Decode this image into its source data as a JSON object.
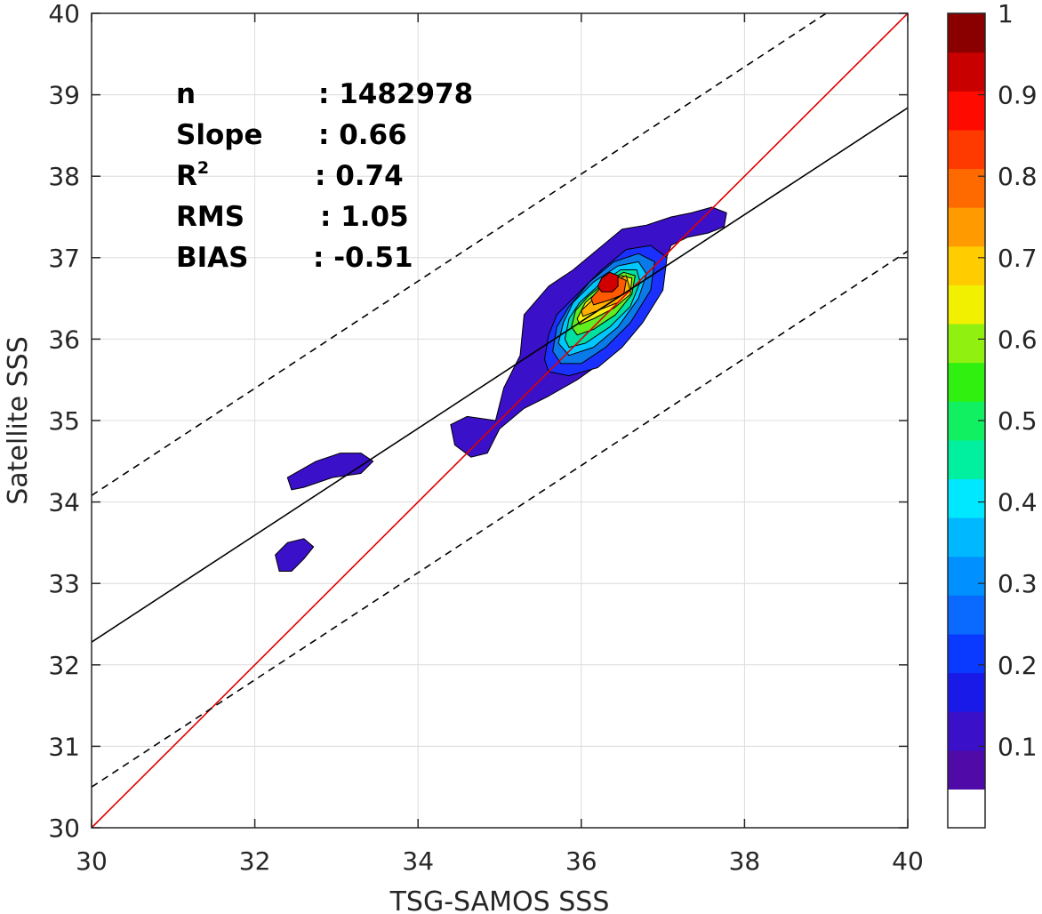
{
  "chart_data": {
    "type": "contour",
    "xlabel": "TSG-SAMOS SSS",
    "ylabel": "Satellite SSS",
    "xlim": [
      30,
      40
    ],
    "ylim": [
      30,
      40
    ],
    "xticks": [
      "30",
      "32",
      "34",
      "36",
      "38",
      "40"
    ],
    "yticks": [
      "30",
      "31",
      "32",
      "33",
      "34",
      "35",
      "36",
      "37",
      "38",
      "39",
      "40"
    ],
    "grid": true,
    "stats": [
      {
        "key": "n",
        "sup": "",
        "value": ": 1482978"
      },
      {
        "key": "Slope",
        "sup": "",
        "value": ": 0.66"
      },
      {
        "key": "R",
        "sup": "2",
        "value": ": 0.74"
      },
      {
        "key": "RMS",
        "sup": "",
        "value": ": 1.05"
      },
      {
        "key": "BIAS",
        "sup": "",
        "value": ": -0.51"
      }
    ],
    "lines": [
      {
        "role": "one-to-one",
        "color": "#e00000",
        "style": "solid",
        "points": [
          [
            30,
            30
          ],
          [
            40,
            40
          ]
        ]
      },
      {
        "role": "regression-fit",
        "color": "#000000",
        "style": "solid",
        "points": [
          [
            30,
            32.28
          ],
          [
            40,
            38.84
          ]
        ]
      },
      {
        "role": "upper-bound",
        "color": "#000000",
        "style": "dashed",
        "points": [
          [
            30,
            34.08
          ],
          [
            39,
            40
          ]
        ]
      },
      {
        "role": "lower-bound",
        "color": "#000000",
        "style": "dashed",
        "points": [
          [
            30,
            30.5
          ],
          [
            40,
            37.08
          ]
        ]
      }
    ],
    "density_regions": [
      {
        "level": 0.05,
        "color": "#3a10c8",
        "points": [
          [
            34.95,
            35.0
          ],
          [
            35.05,
            35.4
          ],
          [
            35.25,
            35.8
          ],
          [
            35.3,
            36.3
          ],
          [
            35.6,
            36.65
          ],
          [
            35.9,
            36.85
          ],
          [
            36.2,
            37.1
          ],
          [
            36.5,
            37.35
          ],
          [
            36.8,
            37.4
          ],
          [
            37.1,
            37.5
          ],
          [
            37.35,
            37.55
          ],
          [
            37.6,
            37.62
          ],
          [
            37.78,
            37.55
          ],
          [
            37.75,
            37.38
          ],
          [
            37.55,
            37.3
          ],
          [
            37.3,
            37.25
          ],
          [
            37.1,
            37.15
          ],
          [
            36.95,
            36.75
          ],
          [
            36.75,
            36.3
          ],
          [
            36.5,
            35.95
          ],
          [
            36.3,
            35.75
          ],
          [
            35.95,
            35.5
          ],
          [
            35.6,
            35.3
          ],
          [
            35.3,
            35.15
          ],
          [
            35.0,
            34.9
          ],
          [
            34.85,
            34.6
          ],
          [
            34.65,
            34.55
          ],
          [
            34.45,
            34.7
          ],
          [
            34.4,
            34.95
          ],
          [
            34.6,
            35.05
          ],
          [
            34.95,
            35.0
          ]
        ]
      },
      {
        "level": 0.05,
        "color": "#3a10c8",
        "points": [
          [
            32.4,
            34.3
          ],
          [
            32.75,
            34.5
          ],
          [
            33.05,
            34.6
          ],
          [
            33.3,
            34.6
          ],
          [
            33.45,
            34.5
          ],
          [
            33.3,
            34.35
          ],
          [
            32.95,
            34.3
          ],
          [
            32.6,
            34.18
          ],
          [
            32.45,
            34.15
          ],
          [
            32.4,
            34.3
          ]
        ]
      },
      {
        "level": 0.05,
        "color": "#3a10c8",
        "points": [
          [
            32.25,
            33.35
          ],
          [
            32.4,
            33.5
          ],
          [
            32.6,
            33.55
          ],
          [
            32.72,
            33.45
          ],
          [
            32.6,
            33.3
          ],
          [
            32.45,
            33.15
          ],
          [
            32.3,
            33.15
          ],
          [
            32.25,
            33.35
          ]
        ]
      },
      {
        "level": 0.15,
        "color": "#1a30ff",
        "points": [
          [
            35.55,
            35.75
          ],
          [
            35.6,
            36.05
          ],
          [
            35.7,
            36.3
          ],
          [
            35.95,
            36.55
          ],
          [
            36.25,
            36.85
          ],
          [
            36.55,
            37.1
          ],
          [
            36.85,
            37.15
          ],
          [
            37.05,
            37.0
          ],
          [
            37.0,
            36.6
          ],
          [
            36.75,
            36.2
          ],
          [
            36.5,
            35.9
          ],
          [
            36.2,
            35.65
          ],
          [
            35.85,
            35.55
          ],
          [
            35.6,
            35.6
          ],
          [
            35.55,
            35.75
          ]
        ]
      },
      {
        "level": 0.25,
        "color": "#0a7ae8",
        "points": [
          [
            35.65,
            35.85
          ],
          [
            35.7,
            36.15
          ],
          [
            35.85,
            36.4
          ],
          [
            36.1,
            36.7
          ],
          [
            36.4,
            36.95
          ],
          [
            36.7,
            37.05
          ],
          [
            36.9,
            36.95
          ],
          [
            36.85,
            36.6
          ],
          [
            36.6,
            36.2
          ],
          [
            36.3,
            35.9
          ],
          [
            36.0,
            35.7
          ],
          [
            35.75,
            35.7
          ],
          [
            35.65,
            35.85
          ]
        ]
      },
      {
        "level": 0.35,
        "color": "#00c8ff",
        "points": [
          [
            35.72,
            35.95
          ],
          [
            35.78,
            36.2
          ],
          [
            35.9,
            36.45
          ],
          [
            36.15,
            36.7
          ],
          [
            36.45,
            36.9
          ],
          [
            36.7,
            36.95
          ],
          [
            36.8,
            36.8
          ],
          [
            36.7,
            36.5
          ],
          [
            36.45,
            36.15
          ],
          [
            36.15,
            35.9
          ],
          [
            35.85,
            35.8
          ],
          [
            35.72,
            35.95
          ]
        ]
      },
      {
        "level": 0.45,
        "color": "#00e0a0",
        "points": [
          [
            35.8,
            36.0
          ],
          [
            35.85,
            36.25
          ],
          [
            35.98,
            36.45
          ],
          [
            36.2,
            36.65
          ],
          [
            36.48,
            36.85
          ],
          [
            36.68,
            36.85
          ],
          [
            36.72,
            36.7
          ],
          [
            36.6,
            36.4
          ],
          [
            36.35,
            36.15
          ],
          [
            36.05,
            35.95
          ],
          [
            35.85,
            35.9
          ],
          [
            35.8,
            36.0
          ]
        ]
      },
      {
        "level": 0.55,
        "color": "#60ee20",
        "points": [
          [
            35.88,
            36.15
          ],
          [
            35.93,
            36.35
          ],
          [
            36.08,
            36.52
          ],
          [
            36.3,
            36.7
          ],
          [
            36.52,
            36.82
          ],
          [
            36.66,
            36.78
          ],
          [
            36.62,
            36.55
          ],
          [
            36.42,
            36.3
          ],
          [
            36.15,
            36.12
          ],
          [
            35.95,
            36.05
          ],
          [
            35.88,
            36.15
          ]
        ]
      },
      {
        "level": 0.65,
        "color": "#f5ee10",
        "points": [
          [
            35.95,
            36.25
          ],
          [
            36.05,
            36.45
          ],
          [
            36.25,
            36.62
          ],
          [
            36.48,
            36.78
          ],
          [
            36.62,
            36.75
          ],
          [
            36.6,
            36.55
          ],
          [
            36.4,
            36.38
          ],
          [
            36.15,
            36.25
          ],
          [
            35.98,
            36.18
          ],
          [
            35.95,
            36.25
          ]
        ]
      },
      {
        "level": 0.75,
        "color": "#ffb000",
        "points": [
          [
            36.0,
            36.35
          ],
          [
            36.18,
            36.52
          ],
          [
            36.38,
            36.7
          ],
          [
            36.55,
            36.78
          ],
          [
            36.6,
            36.6
          ],
          [
            36.45,
            36.45
          ],
          [
            36.2,
            36.35
          ],
          [
            36.02,
            36.28
          ],
          [
            36.0,
            36.35
          ]
        ]
      },
      {
        "level": 0.85,
        "color": "#ff5a00",
        "points": [
          [
            36.12,
            36.5
          ],
          [
            36.25,
            36.65
          ],
          [
            36.42,
            36.78
          ],
          [
            36.55,
            36.72
          ],
          [
            36.52,
            36.55
          ],
          [
            36.35,
            36.48
          ],
          [
            36.15,
            36.42
          ],
          [
            36.12,
            36.5
          ]
        ]
      },
      {
        "level": 0.95,
        "color": "#d10000",
        "points": [
          [
            36.2,
            36.65
          ],
          [
            36.25,
            36.75
          ],
          [
            36.35,
            36.82
          ],
          [
            36.45,
            36.78
          ],
          [
            36.45,
            36.65
          ],
          [
            36.38,
            36.58
          ],
          [
            36.25,
            36.58
          ],
          [
            36.2,
            36.65
          ]
        ]
      }
    ],
    "colorbar": {
      "ticks": [
        "0.1",
        "0.2",
        "0.3",
        "0.4",
        "0.5",
        "0.6",
        "0.7",
        "0.8",
        "0.9",
        "1"
      ],
      "bands": [
        "#ffffff",
        "#4f0aa8",
        "#3a10c8",
        "#1a1ae8",
        "#0a3aff",
        "#0a6aff",
        "#0090ff",
        "#00b8ff",
        "#00e8ff",
        "#00f0a0",
        "#10f060",
        "#30f010",
        "#90f010",
        "#f0f000",
        "#ffcc00",
        "#ff9a00",
        "#ff6a00",
        "#ff3a00",
        "#ff0a00",
        "#c80000",
        "#8a0000"
      ]
    }
  }
}
